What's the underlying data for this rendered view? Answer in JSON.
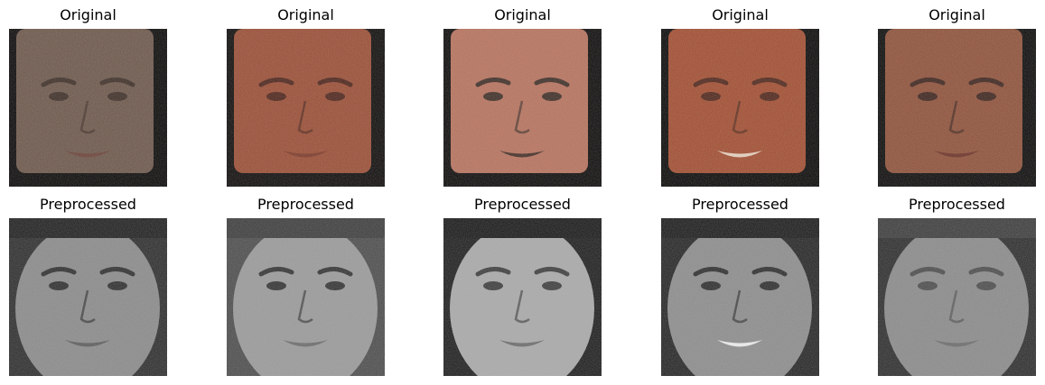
{
  "rows": [
    {
      "title": "Original",
      "panels": [
        {
          "title": "Original",
          "kind": "color-face",
          "bg": "#050403",
          "skin": "#6b5447",
          "dark": "#3a2a22",
          "lip": "#6a3d33",
          "hair": "#2a2320"
        },
        {
          "title": "Original",
          "kind": "color-face",
          "bg": "#0a0706",
          "skin": "#9a4a30",
          "dark": "#4b2016",
          "lip": "#7a3524",
          "hair": "#3b2015"
        },
        {
          "title": "Original",
          "kind": "color-face",
          "bg": "#080605",
          "skin": "#b8705a",
          "dark": "#3b2a22",
          "lip": "#402a22",
          "hair": "#2b2320"
        },
        {
          "title": "Original",
          "kind": "color-face",
          "bg": "#050403",
          "skin": "#a24a2c",
          "dark": "#4d2216",
          "lip": "#e8d2c0",
          "hair": "#5a2a18"
        },
        {
          "title": "Original",
          "kind": "color-face",
          "bg": "#070605",
          "skin": "#8e4e35",
          "dark": "#3b2019",
          "lip": "#6a2d22",
          "hair": "#2a1e18"
        }
      ]
    },
    {
      "title": "Preprocessed",
      "panels": [
        {
          "title": "Preprocessed",
          "kind": "gray-face",
          "bg": "#2a2a2a",
          "skin": "#8a8a8a",
          "dark": "#2b2b2b",
          "lip": "#5a5a5a",
          "hair": "#1c1c1c"
        },
        {
          "title": "Preprocessed",
          "kind": "gray-face",
          "bg": "#4a4a4a",
          "skin": "#9a9a9a",
          "dark": "#303030",
          "lip": "#6a6a6a",
          "hair": "#3a3a3a"
        },
        {
          "title": "Preprocessed",
          "kind": "gray-face",
          "bg": "#1a1a1a",
          "skin": "#aaaaaa",
          "dark": "#3a3a3a",
          "lip": "#6a6a6a",
          "hair": "#151515"
        },
        {
          "title": "Preprocessed",
          "kind": "gray-face",
          "bg": "#222222",
          "skin": "#8c8c8c",
          "dark": "#2a2a2a",
          "lip": "#f0f0f0",
          "hair": "#181818"
        },
        {
          "title": "Preprocessed",
          "kind": "gray-face",
          "bg": "#2a2a2a",
          "skin": "#8a8a8a",
          "dark": "#4a4a4a",
          "lip": "#6a6a6a",
          "hair": "#3a3a3a"
        }
      ]
    }
  ]
}
